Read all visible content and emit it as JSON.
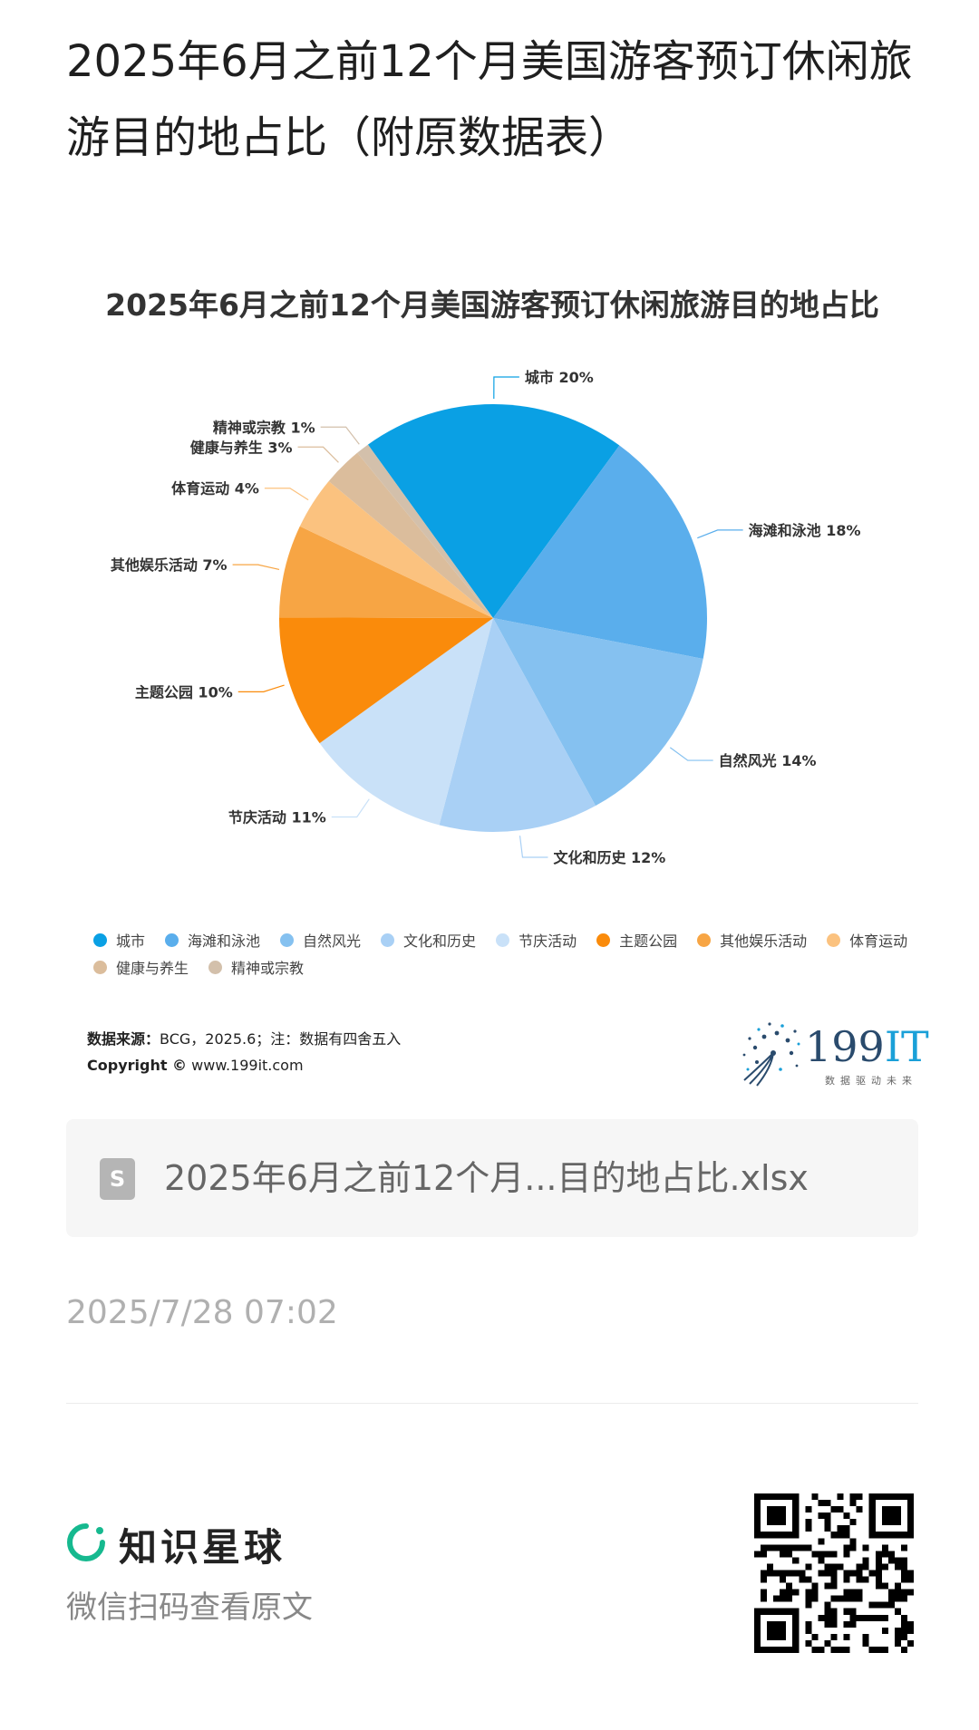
{
  "page": {
    "title": "2025年6月之前12个月美国游客预订休闲旅游目的地占比（附原数据表）"
  },
  "chart_data": {
    "type": "pie",
    "title": "2025年6月之前12个月美国游客预订休闲旅游目的地占比",
    "categories": [
      "城市",
      "海滩和泳池",
      "自然风光",
      "文化和历史",
      "节庆活动",
      "主题公园",
      "其他娱乐活动",
      "体育运动",
      "健康与养生",
      "精神或宗教"
    ],
    "values": [
      20,
      18,
      14,
      12,
      11,
      10,
      7,
      4,
      3,
      1
    ],
    "unit": "%",
    "labels": [
      "城市 20%",
      "海滩和泳池 18%",
      "自然风光 14%",
      "文化和历史 12%",
      "节庆活动 11%",
      "主题公园 10%",
      "其他娱乐活动 7%",
      "体育运动 4%",
      "健康与养生 3%",
      "精神或宗教 1%"
    ],
    "colors": [
      "#0aa0e4",
      "#5aaeec",
      "#85c1f0",
      "#a9d0f5",
      "#c9e1f8",
      "#fa8b0b",
      "#f7a544",
      "#fbc27f",
      "#dbbd9c",
      "#d3c0ab"
    ],
    "legend_position": "bottom"
  },
  "source": {
    "label": "数据来源：",
    "text": "BCG，2025.6；注：数据有四舍五入",
    "copyright_label": "Copyright ©",
    "copyright_site": "www.199it.com"
  },
  "brand": {
    "name_num": "199",
    "name_it": "IT",
    "slogan": "数据驱动未来"
  },
  "file": {
    "icon_letter": "S",
    "name": "2025年6月之前12个月...目的地占比.xlsx"
  },
  "timestamp": "2025/7/28 07:02",
  "footer": {
    "app_name": "知识星球",
    "scan_hint": "微信扫码查看原文"
  }
}
